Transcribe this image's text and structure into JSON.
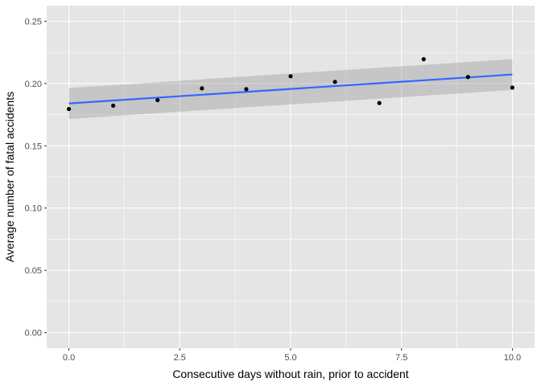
{
  "chart_data": {
    "type": "scatter",
    "title": "",
    "xlabel": "Consecutive days without rain, prior to accident",
    "ylabel": "Average number of fatal accidents",
    "xlim": [
      -0.5,
      10.5
    ],
    "ylim": [
      -0.0125,
      0.2625
    ],
    "x_ticks": [
      0,
      2.5,
      5,
      7.5,
      10
    ],
    "x_tick_labels": [
      "0.0",
      "2.5",
      "5.0",
      "7.5",
      "10.0"
    ],
    "y_ticks": [
      0,
      0.05,
      0.1,
      0.15,
      0.2,
      0.25
    ],
    "y_tick_labels": [
      "0.00",
      "0.05",
      "0.10",
      "0.15",
      "0.20",
      "0.25"
    ],
    "grid": true,
    "points": [
      {
        "x": 0,
        "y": 0.1795
      },
      {
        "x": 1,
        "y": 0.1822
      },
      {
        "x": 2,
        "y": 0.1866
      },
      {
        "x": 3,
        "y": 0.1961
      },
      {
        "x": 4,
        "y": 0.1955
      },
      {
        "x": 5,
        "y": 0.2058
      },
      {
        "x": 6,
        "y": 0.2013
      },
      {
        "x": 7,
        "y": 0.1843
      },
      {
        "x": 8,
        "y": 0.2195
      },
      {
        "x": 9,
        "y": 0.2052
      },
      {
        "x": 10,
        "y": 0.1967
      }
    ],
    "trend": {
      "method": "linear",
      "x": [
        0,
        10
      ],
      "y": [
        0.184,
        0.2072
      ],
      "ci_lower": [
        0.1715,
        0.1948
      ],
      "ci_upper": [
        0.1964,
        0.2196
      ]
    },
    "colors": {
      "panel_bg": "#e5e5e5",
      "grid": "#ffffff",
      "point": "#000000",
      "trend_line": "#3366ff",
      "ci_band": "#999999"
    }
  }
}
